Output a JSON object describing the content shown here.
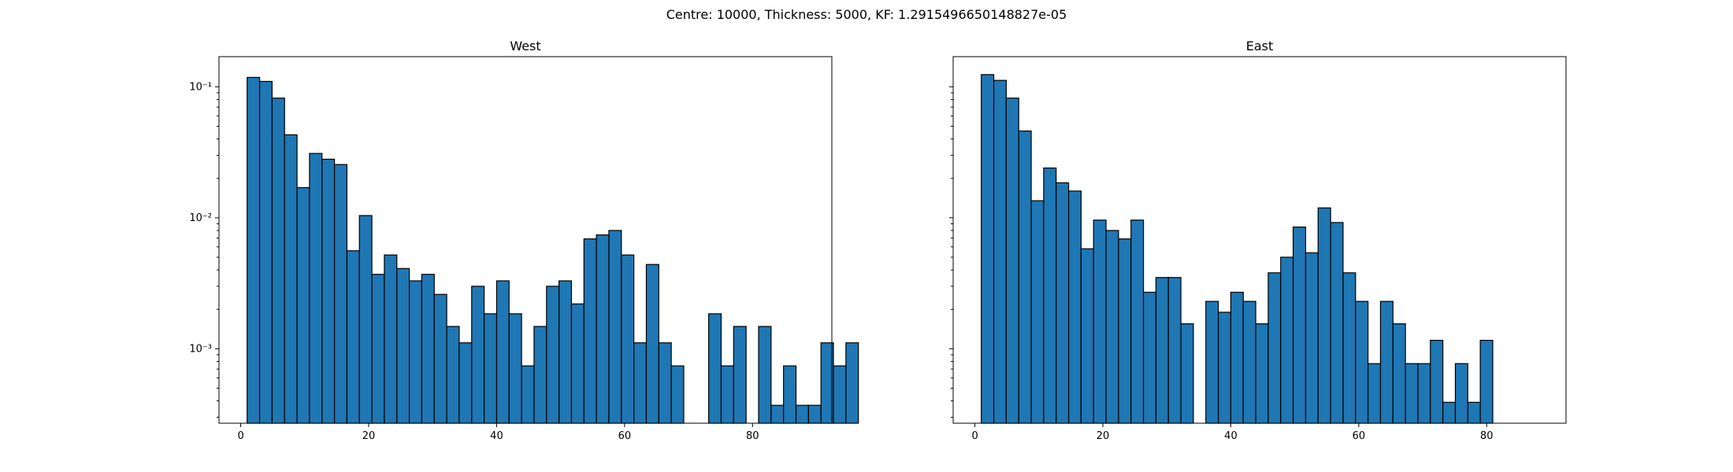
{
  "figure": {
    "suptitle": "Centre: 10000, Thickness: 5000, KF: 1.2915496650148827e-05"
  },
  "chart_data": [
    {
      "type": "bar",
      "title": "West",
      "xlabel": "",
      "ylabel": "",
      "yscale": "log",
      "xlim": [
        -3.4,
        92.4
      ],
      "ylim": [
        0.00027,
        0.17
      ],
      "xticks": [
        0,
        20,
        40,
        60,
        80
      ],
      "xtick_labels": [
        "0",
        "20",
        "40",
        "60",
        "80"
      ],
      "yticks": [
        0.001,
        0.01,
        0.1
      ],
      "ytick_labels": [
        "10⁻³",
        "10⁻²",
        "10⁻¹"
      ],
      "show_ytick_labels": true,
      "bin_width": 1.95,
      "bin_start": 1.0,
      "values": [
        0.118,
        0.11,
        0.082,
        0.043,
        0.017,
        0.031,
        0.028,
        0.0255,
        0.0056,
        0.0104,
        0.0037,
        0.0052,
        0.0041,
        0.0033,
        0.0037,
        0.0026,
        0.00148,
        0.00111,
        0.003,
        0.00185,
        0.0033,
        0.00185,
        0.00074,
        0.00148,
        0.003,
        0.0033,
        0.0022,
        0.0069,
        0.0074,
        0.008,
        0.0052,
        0.00111,
        0.0044,
        0.00111,
        0.00074,
        0,
        0,
        0.00185,
        0.00074,
        0.00148,
        0,
        0.00148,
        0.00037,
        0.00074,
        0.00037,
        0.00037,
        0.00111,
        0.00074,
        0.00111
      ]
    },
    {
      "type": "bar",
      "title": "East",
      "xlabel": "",
      "ylabel": "",
      "yscale": "log",
      "xlim": [
        -3.4,
        92.4
      ],
      "ylim": [
        0.00027,
        0.17
      ],
      "xticks": [
        0,
        20,
        40,
        60,
        80
      ],
      "xtick_labels": [
        "0",
        "20",
        "40",
        "60",
        "80"
      ],
      "yticks": [
        0.001,
        0.01,
        0.1
      ],
      "ytick_labels": [
        "10⁻³",
        "10⁻²",
        "10⁻¹"
      ],
      "show_ytick_labels": false,
      "bin_width": 1.95,
      "bin_start": 1.0,
      "values": [
        0.124,
        0.112,
        0.082,
        0.046,
        0.0135,
        0.024,
        0.0185,
        0.016,
        0.0058,
        0.0096,
        0.008,
        0.0069,
        0.0096,
        0.0027,
        0.0035,
        0.0035,
        0.00155,
        0,
        0.0023,
        0.0019,
        0.0027,
        0.0023,
        0.00155,
        0.0038,
        0.005,
        0.0085,
        0.0054,
        0.0119,
        0.0092,
        0.0038,
        0.0023,
        0.00077,
        0.0023,
        0.00155,
        0.00077,
        0.00077,
        0.00116,
        0.00039,
        0.00077,
        0.00039,
        0.00116
      ]
    }
  ]
}
